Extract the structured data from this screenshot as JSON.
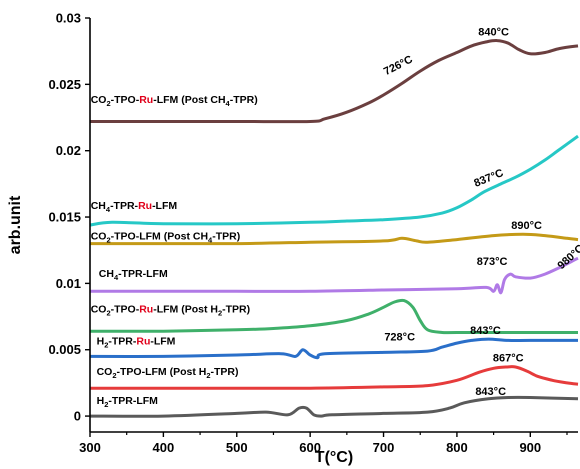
{
  "chart_data": {
    "type": "line",
    "xlabel": "T(°C)",
    "ylabel": "arb.unit",
    "xlim": [
      300,
      965
    ],
    "ylim": [
      -0.0012,
      0.03
    ],
    "x_ticks": [
      300,
      400,
      500,
      600,
      700,
      800,
      900
    ],
    "y_ticks": [
      {
        "value": 0,
        "label": "0"
      },
      {
        "value": 0.005,
        "label": "0.005"
      },
      {
        "value": 0.01,
        "label": "0.01"
      },
      {
        "value": 0.015,
        "label": "0.015"
      },
      {
        "value": 0.02,
        "label": "0.02"
      },
      {
        "value": 0.025,
        "label": "0.025"
      },
      {
        "value": 0.03,
        "label": "0.03"
      }
    ],
    "grid": false,
    "series": [
      {
        "color": "#6b3f3f",
        "label_parts": [
          {
            "t": "CO"
          },
          {
            "t": "2",
            "sub": true
          },
          {
            "t": "-TPO-"
          },
          {
            "t": "Ru",
            "red": true
          },
          {
            "t": "-LFM (Post CH"
          },
          {
            "t": "4",
            "sub": true
          },
          {
            "t": "-TPR)"
          }
        ],
        "label_at": [
          301,
          0.0236
        ],
        "x": [
          300,
          400,
          500,
          600,
          620,
          650,
          680,
          700,
          726,
          750,
          775,
          800,
          820,
          840,
          855,
          870,
          885,
          900,
          920,
          940,
          965
        ],
        "y": [
          0.0222,
          0.0222,
          0.0222,
          0.0222,
          0.0224,
          0.0229,
          0.0236,
          0.0242,
          0.0251,
          0.026,
          0.0268,
          0.0274,
          0.0279,
          0.0282,
          0.0283,
          0.0281,
          0.0276,
          0.0273,
          0.0274,
          0.0277,
          0.0279
        ]
      },
      {
        "color": "#26c8c6",
        "label_parts": [
          {
            "t": "CH"
          },
          {
            "t": "4",
            "sub": true
          },
          {
            "t": "-TPR-"
          },
          {
            "t": "Ru",
            "red": true
          },
          {
            "t": "-LFM"
          }
        ],
        "label_at": [
          301,
          0.0156
        ],
        "x": [
          300,
          330,
          400,
          500,
          600,
          650,
          700,
          750,
          780,
          800,
          820,
          837,
          860,
          880,
          900,
          920,
          940,
          965
        ],
        "y": [
          0.0144,
          0.0146,
          0.0145,
          0.0145,
          0.0146,
          0.0147,
          0.0148,
          0.015,
          0.0153,
          0.0157,
          0.0163,
          0.0169,
          0.0175,
          0.018,
          0.0186,
          0.0193,
          0.0201,
          0.0211
        ]
      },
      {
        "color": "#c49a17",
        "label_parts": [
          {
            "t": "CO"
          },
          {
            "t": "2",
            "sub": true
          },
          {
            "t": "-TPO-LFM (Post CH"
          },
          {
            "t": "4",
            "sub": true
          },
          {
            "t": "-TPR)"
          }
        ],
        "label_at": [
          301,
          0.0133
        ],
        "x": [
          300,
          400,
          500,
          600,
          700,
          725,
          745,
          760,
          800,
          850,
          890,
          920,
          950,
          965
        ],
        "y": [
          0.013,
          0.013,
          0.013,
          0.0131,
          0.0132,
          0.0134,
          0.0132,
          0.0131,
          0.0133,
          0.0136,
          0.0137,
          0.0136,
          0.0134,
          0.0133
        ]
      },
      {
        "color": "#b07ae6",
        "label_parts": [
          {
            "t": "CH"
          },
          {
            "t": "4",
            "sub": true
          },
          {
            "t": "-TPR-LFM"
          }
        ],
        "label_at": [
          312,
          0.0105
        ],
        "x": [
          300,
          400,
          500,
          600,
          700,
          800,
          840,
          850,
          855,
          860,
          865,
          873,
          880,
          900,
          920,
          940,
          965
        ],
        "y": [
          0.0094,
          0.0094,
          0.0094,
          0.0094,
          0.0095,
          0.0096,
          0.0097,
          0.0094,
          0.0099,
          0.0093,
          0.0103,
          0.0107,
          0.0105,
          0.0104,
          0.0107,
          0.0112,
          0.0119
        ]
      },
      {
        "color": "#3fb06a",
        "label_parts": [
          {
            "t": "CO"
          },
          {
            "t": "2",
            "sub": true
          },
          {
            "t": "-TPO-"
          },
          {
            "t": "Ru",
            "red": true
          },
          {
            "t": "-LFM (Post H"
          },
          {
            "t": "2",
            "sub": true
          },
          {
            "t": "-TPR)"
          }
        ],
        "label_at": [
          301,
          0.0078
        ],
        "x": [
          300,
          400,
          500,
          550,
          600,
          650,
          680,
          700,
          715,
          728,
          740,
          750,
          760,
          780,
          800,
          900,
          965
        ],
        "y": [
          0.0064,
          0.0064,
          0.0065,
          0.0066,
          0.0068,
          0.0072,
          0.0077,
          0.0082,
          0.0086,
          0.0087,
          0.0082,
          0.0072,
          0.0065,
          0.0063,
          0.0063,
          0.0063,
          0.0063
        ]
      },
      {
        "color": "#2a6fc9",
        "label_parts": [
          {
            "t": "H"
          },
          {
            "t": "2",
            "sub": true
          },
          {
            "t": "-TPR-"
          },
          {
            "t": "Ru",
            "red": true
          },
          {
            "t": "-LFM"
          }
        ],
        "label_at": [
          309,
          0.0054
        ],
        "x": [
          300,
          400,
          500,
          560,
          580,
          590,
          600,
          610,
          620,
          700,
          760,
          780,
          800,
          820,
          843,
          870,
          900,
          965
        ],
        "y": [
          0.0045,
          0.0045,
          0.0046,
          0.0047,
          0.0045,
          0.005,
          0.0046,
          0.0044,
          0.0047,
          0.0048,
          0.0049,
          0.0052,
          0.0055,
          0.0057,
          0.0058,
          0.0057,
          0.0057,
          0.0057
        ]
      },
      {
        "color": "#e63b3b",
        "label_parts": [
          {
            "t": "CO"
          },
          {
            "t": "2",
            "sub": true
          },
          {
            "t": "-TPO-LFM (Post H"
          },
          {
            "t": "2",
            "sub": true
          },
          {
            "t": "-TPR)"
          }
        ],
        "label_at": [
          309,
          0.0031
        ],
        "x": [
          300,
          400,
          500,
          600,
          700,
          760,
          800,
          830,
          850,
          867,
          880,
          895,
          910,
          930,
          950,
          965
        ],
        "y": [
          0.0021,
          0.0021,
          0.0021,
          0.0021,
          0.0022,
          0.0023,
          0.0027,
          0.0033,
          0.0036,
          0.0037,
          0.0037,
          0.0034,
          0.003,
          0.0027,
          0.0025,
          0.0024
        ]
      },
      {
        "color": "#5a5a5a",
        "label_parts": [
          {
            "t": "H"
          },
          {
            "t": "2",
            "sub": true
          },
          {
            "t": "-TPR-LFM"
          }
        ],
        "label_at": [
          309,
          0.0009
        ],
        "x": [
          300,
          400,
          500,
          540,
          570,
          585,
          595,
          605,
          615,
          630,
          700,
          760,
          790,
          810,
          843,
          870,
          900,
          965
        ],
        "y": [
          0.0,
          0.0,
          0.0002,
          0.0003,
          0.0001,
          0.0006,
          0.0006,
          0.0001,
          0.0,
          0.0001,
          0.0002,
          0.0003,
          0.0006,
          0.001,
          0.0013,
          0.0014,
          0.0014,
          0.0013
        ]
      }
    ],
    "annotations": [
      {
        "text": "726°C",
        "x": 722,
        "y": 0.0262,
        "angle": -27
      },
      {
        "text": "840°C",
        "x": 850,
        "y": 0.0287,
        "angle": 0
      },
      {
        "text": "837°C",
        "x": 845,
        "y": 0.0177,
        "angle": -22
      },
      {
        "text": "890°C",
        "x": 895,
        "y": 0.0141,
        "angle": 0
      },
      {
        "text": "873°C",
        "x": 848,
        "y": 0.0114,
        "angle": 0
      },
      {
        "text": "980°C",
        "x": 958,
        "y": 0.0118,
        "angle": -42
      },
      {
        "text": "728°C",
        "x": 722,
        "y": 0.0057,
        "angle": 0
      },
      {
        "text": "843°C",
        "x": 839,
        "y": 0.0062,
        "angle": 0
      },
      {
        "text": "867°C",
        "x": 870,
        "y": 0.0041,
        "angle": 0
      },
      {
        "text": "843°C",
        "x": 846,
        "y": 0.0016,
        "angle": 0
      }
    ]
  }
}
